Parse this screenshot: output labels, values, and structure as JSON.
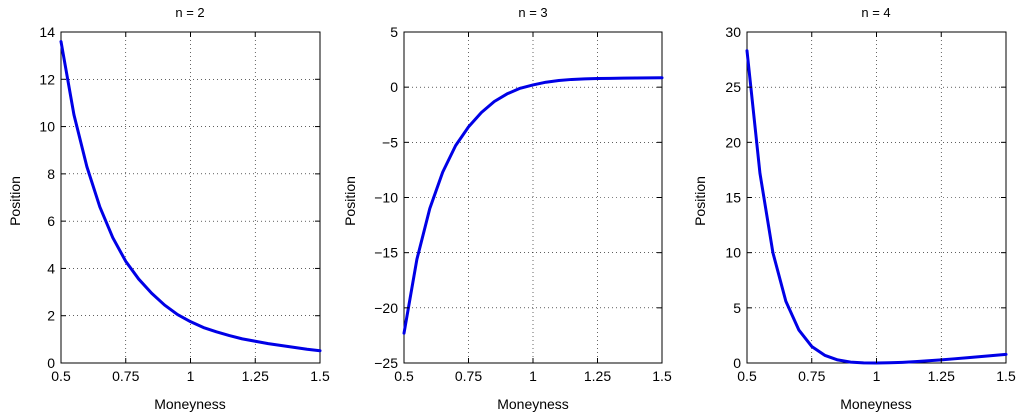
{
  "figure": {
    "line_color": "#0000e6"
  },
  "chart_data": [
    {
      "type": "line",
      "title": "n = 2",
      "xlabel": "Moneyness",
      "ylabel": "Position",
      "xlim": [
        0.5,
        1.5
      ],
      "ylim": [
        0,
        14
      ],
      "xticks": [
        0.5,
        0.75,
        1,
        1.25,
        1.5
      ],
      "xtick_labels": [
        "0.5",
        "0.75",
        "1",
        "1.25",
        "1.5"
      ],
      "yticks": [
        0,
        2,
        4,
        6,
        8,
        10,
        12,
        14
      ],
      "ytick_labels": [
        "0",
        "2",
        "4",
        "6",
        "8",
        "10",
        "12",
        "14"
      ],
      "grid": true,
      "series": [
        {
          "x": [
            0.5,
            0.55,
            0.6,
            0.65,
            0.7,
            0.75,
            0.8,
            0.85,
            0.9,
            0.95,
            1.0,
            1.05,
            1.1,
            1.15,
            1.2,
            1.25,
            1.3,
            1.35,
            1.4,
            1.45,
            1.5
          ],
          "y": [
            13.6,
            10.5,
            8.3,
            6.6,
            5.3,
            4.3,
            3.55,
            2.95,
            2.45,
            2.05,
            1.75,
            1.5,
            1.32,
            1.16,
            1.02,
            0.92,
            0.82,
            0.74,
            0.66,
            0.58,
            0.52
          ]
        }
      ]
    },
    {
      "type": "line",
      "title": "n = 3",
      "xlabel": "Moneyness",
      "ylabel": "Position",
      "xlim": [
        0.5,
        1.5
      ],
      "ylim": [
        -25,
        5
      ],
      "xticks": [
        0.5,
        0.75,
        1,
        1.25,
        1.5
      ],
      "xtick_labels": [
        "0.5",
        "0.75",
        "1",
        "1.25",
        "1.5"
      ],
      "yticks": [
        -25,
        -20,
        -15,
        -10,
        -5,
        0,
        5
      ],
      "ytick_labels": [
        "−25",
        "−20",
        "−15",
        "−10",
        "−5",
        "0",
        "5"
      ],
      "grid": true,
      "series": [
        {
          "x": [
            0.5,
            0.55,
            0.6,
            0.65,
            0.7,
            0.75,
            0.8,
            0.85,
            0.9,
            0.95,
            1.0,
            1.05,
            1.1,
            1.15,
            1.2,
            1.25,
            1.3,
            1.35,
            1.4,
            1.45,
            1.5
          ],
          "y": [
            -22.3,
            -15.6,
            -11.0,
            -7.7,
            -5.3,
            -3.6,
            -2.3,
            -1.3,
            -0.6,
            -0.1,
            0.2,
            0.45,
            0.6,
            0.7,
            0.75,
            0.78,
            0.8,
            0.82,
            0.83,
            0.84,
            0.85
          ]
        }
      ]
    },
    {
      "type": "line",
      "title": "n = 4",
      "xlabel": "Moneyness",
      "ylabel": "Position",
      "xlim": [
        0.5,
        1.5
      ],
      "ylim": [
        0,
        30
      ],
      "xticks": [
        0.5,
        0.75,
        1,
        1.25,
        1.5
      ],
      "xtick_labels": [
        "0.5",
        "0.75",
        "1",
        "1.25",
        "1.5"
      ],
      "yticks": [
        0,
        5,
        10,
        15,
        20,
        25,
        30
      ],
      "ytick_labels": [
        "0",
        "5",
        "10",
        "15",
        "20",
        "25",
        "30"
      ],
      "grid": true,
      "series": [
        {
          "x": [
            0.5,
            0.55,
            0.6,
            0.65,
            0.7,
            0.75,
            0.8,
            0.85,
            0.9,
            0.95,
            1.0,
            1.05,
            1.1,
            1.15,
            1.2,
            1.25,
            1.3,
            1.35,
            1.4,
            1.45,
            1.5
          ],
          "y": [
            28.3,
            17.2,
            10.0,
            5.6,
            3.0,
            1.5,
            0.7,
            0.28,
            0.08,
            0.01,
            0.0,
            0.02,
            0.06,
            0.12,
            0.2,
            0.28,
            0.38,
            0.48,
            0.58,
            0.68,
            0.78
          ]
        }
      ]
    }
  ]
}
